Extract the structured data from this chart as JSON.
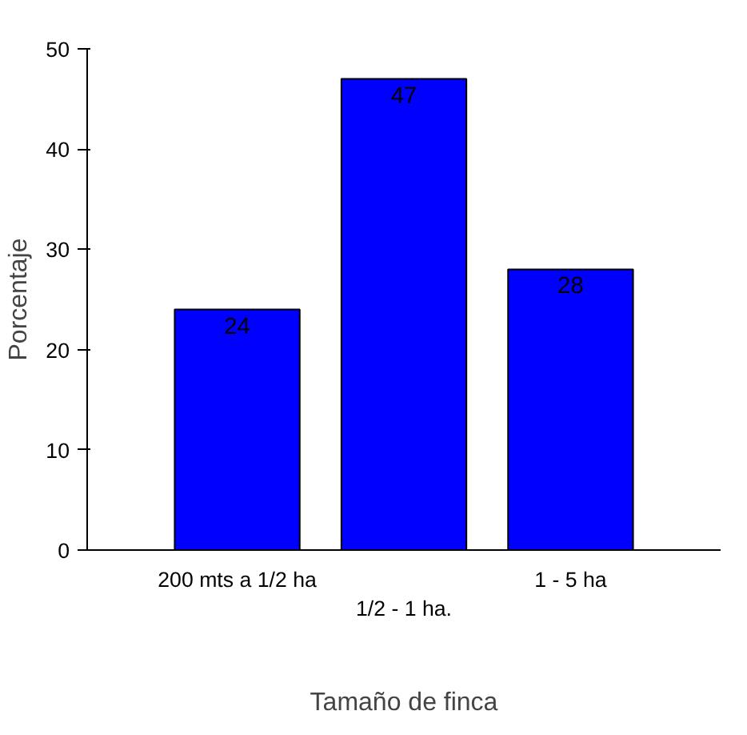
{
  "chart_data": {
    "type": "bar",
    "xlabel": "Tamaño de finca",
    "ylabel": "Porcentaje",
    "categories": [
      "200 mts a 1/2 ha",
      "1/2 - 1 ha.",
      "1 - 5 ha"
    ],
    "values": [
      24,
      47,
      28
    ],
    "color": "#0000ff",
    "data_labels": true,
    "ylim": [
      0,
      50
    ],
    "yticks": [
      0,
      10,
      20,
      30,
      40,
      50
    ],
    "grid": false
  }
}
